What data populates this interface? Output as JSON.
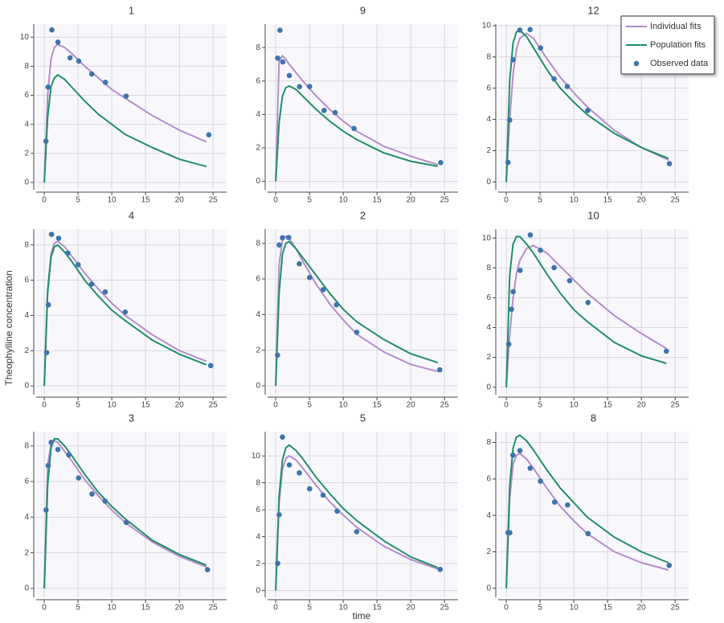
{
  "xlabel": "time",
  "ylabel": "Theophylline concentration",
  "legend": "top-right",
  "chart_data": [
    {
      "type": "line",
      "title": "1",
      "xlim": [
        -1.2,
        27
      ],
      "xticks": [
        0,
        5,
        10,
        15,
        20,
        25
      ],
      "ylim": [
        -0.5,
        10.9
      ],
      "yticks": [
        0,
        2,
        4,
        6,
        8,
        10
      ],
      "grid": true,
      "series": [
        {
          "name": "Individual fits",
          "color": "#b48ccb",
          "x": [
            0,
            0.5,
            1,
            1.5,
            2,
            3,
            4,
            6,
            8,
            10,
            12,
            16,
            20,
            24
          ],
          "values": [
            0,
            6.0,
            8.5,
            9.3,
            9.5,
            9.3,
            8.9,
            8.0,
            7.2,
            6.4,
            5.8,
            4.6,
            3.6,
            2.8
          ]
        },
        {
          "name": "Population fits",
          "color": "#1f8f68",
          "x": [
            0,
            0.5,
            1,
            1.5,
            2,
            3,
            4,
            6,
            8,
            10,
            12,
            16,
            20,
            24
          ],
          "values": [
            0,
            4.5,
            6.6,
            7.2,
            7.4,
            7.1,
            6.6,
            5.6,
            4.7,
            4.0,
            3.3,
            2.4,
            1.6,
            1.1
          ]
        },
        {
          "name": "Observed data",
          "type": "scatter",
          "color": "#3d74ab",
          "x": [
            0.25,
            0.57,
            1.12,
            2.02,
            3.82,
            5.1,
            7.03,
            9.05,
            12.12,
            24.37
          ],
          "values": [
            2.84,
            6.57,
            10.5,
            9.66,
            8.58,
            8.36,
            7.47,
            6.89,
            5.94,
            3.28
          ]
        }
      ]
    },
    {
      "type": "line",
      "title": "9",
      "xlim": [
        -1.2,
        27
      ],
      "xticks": [
        0,
        5,
        10,
        15,
        20,
        25
      ],
      "ylim": [
        -0.5,
        9.4
      ],
      "yticks": [
        0,
        2,
        4,
        6,
        8
      ],
      "grid": true,
      "series": [
        {
          "color": "#b48ccb",
          "x": [
            0,
            0.5,
            1,
            1.5,
            2,
            3,
            4,
            6,
            8,
            10,
            12,
            16,
            20,
            24
          ],
          "values": [
            0,
            7.2,
            7.5,
            7.3,
            7.0,
            6.5,
            6.0,
            5.1,
            4.3,
            3.6,
            3.0,
            2.1,
            1.5,
            1.0
          ]
        },
        {
          "color": "#1f8f68",
          "x": [
            0,
            0.5,
            1,
            1.5,
            2,
            3,
            4,
            6,
            8,
            10,
            12,
            16,
            20,
            24
          ],
          "values": [
            0,
            3.5,
            5.1,
            5.6,
            5.7,
            5.5,
            5.1,
            4.3,
            3.6,
            3.0,
            2.5,
            1.7,
            1.2,
            0.9
          ]
        },
        {
          "type": "scatter",
          "color": "#3d74ab",
          "x": [
            0.3,
            0.63,
            1.05,
            2.02,
            3.53,
            5.02,
            7.17,
            8.8,
            11.6,
            24.43
          ],
          "values": [
            7.37,
            9.03,
            7.14,
            6.33,
            5.66,
            5.67,
            4.24,
            4.11,
            3.16,
            1.12
          ]
        }
      ]
    },
    {
      "type": "line",
      "title": "12",
      "xlim": [
        -1.2,
        27
      ],
      "xticks": [
        0,
        5,
        10,
        15,
        20,
        25
      ],
      "ylim": [
        -0.5,
        10.1
      ],
      "yticks": [
        0,
        2,
        4,
        6,
        8,
        10
      ],
      "grid": true,
      "series": [
        {
          "color": "#b48ccb",
          "x": [
            0,
            0.5,
            1,
            1.5,
            2,
            3,
            4,
            6,
            8,
            10,
            12,
            16,
            20,
            24
          ],
          "values": [
            0,
            4.0,
            6.9,
            8.5,
            9.2,
            9.5,
            9.2,
            7.9,
            6.7,
            5.7,
            4.8,
            3.3,
            2.2,
            1.4
          ]
        },
        {
          "color": "#1f8f68",
          "x": [
            0,
            0.5,
            1,
            1.5,
            2,
            3,
            4,
            6,
            8,
            10,
            12,
            16,
            20,
            24
          ],
          "values": [
            0,
            6.5,
            8.9,
            9.6,
            9.7,
            9.3,
            8.6,
            7.2,
            6.0,
            5.1,
            4.3,
            3.1,
            2.2,
            1.5
          ]
        },
        {
          "type": "scatter",
          "color": "#3d74ab",
          "x": [
            0.25,
            0.5,
            1,
            2,
            3.52,
            5.07,
            7.07,
            9.03,
            12.05,
            24.15
          ],
          "values": [
            1.25,
            3.96,
            7.82,
            9.72,
            9.75,
            8.57,
            6.59,
            6.11,
            4.57,
            1.17
          ]
        }
      ]
    },
    {
      "type": "line",
      "title": "4",
      "xlim": [
        -1.2,
        27
      ],
      "xticks": [
        0,
        5,
        10,
        15,
        20,
        25
      ],
      "ylim": [
        -0.5,
        8.9
      ],
      "yticks": [
        0,
        2,
        4,
        6,
        8
      ],
      "grid": true,
      "series": [
        {
          "color": "#b48ccb",
          "x": [
            0,
            0.5,
            1,
            1.5,
            2,
            3,
            4,
            6,
            8,
            10,
            12,
            16,
            20,
            24
          ],
          "values": [
            0,
            5.5,
            7.5,
            8.1,
            8.2,
            7.9,
            7.4,
            6.4,
            5.5,
            4.7,
            4.0,
            2.9,
            2.0,
            1.4
          ]
        },
        {
          "color": "#1f8f68",
          "x": [
            0,
            0.5,
            1,
            1.5,
            2,
            3,
            4,
            6,
            8,
            10,
            12,
            16,
            20,
            24
          ],
          "values": [
            0,
            5.3,
            7.3,
            7.9,
            8.0,
            7.6,
            7.1,
            6.0,
            5.1,
            4.3,
            3.7,
            2.6,
            1.8,
            1.2
          ]
        },
        {
          "type": "scatter",
          "color": "#3d74ab",
          "x": [
            0.35,
            0.6,
            1.07,
            2.13,
            3.5,
            5.02,
            7.02,
            9.02,
            11.98,
            24.65
          ],
          "values": [
            1.89,
            4.6,
            8.6,
            8.38,
            7.54,
            6.88,
            5.78,
            5.33,
            4.19,
            1.15
          ]
        }
      ]
    },
    {
      "type": "line",
      "title": "2",
      "xlim": [
        -1.2,
        27
      ],
      "xticks": [
        0,
        5,
        10,
        15,
        20,
        25
      ],
      "ylim": [
        -0.5,
        8.8
      ],
      "yticks": [
        0,
        2,
        4,
        6,
        8
      ],
      "grid": true,
      "series": [
        {
          "color": "#b48ccb",
          "x": [
            0,
            0.5,
            1,
            1.5,
            2,
            3,
            4,
            6,
            8,
            10,
            12,
            16,
            20,
            24
          ],
          "values": [
            0,
            6.8,
            8.2,
            8.4,
            8.3,
            7.7,
            7.0,
            5.7,
            4.6,
            3.7,
            2.9,
            1.9,
            1.2,
            0.8
          ]
        },
        {
          "color": "#1f8f68",
          "x": [
            0,
            0.5,
            1,
            1.5,
            2,
            3,
            4,
            6,
            8,
            10,
            12,
            16,
            20,
            24
          ],
          "values": [
            0,
            5.2,
            7.4,
            8.0,
            8.1,
            7.7,
            7.2,
            6.2,
            5.2,
            4.3,
            3.6,
            2.6,
            1.8,
            1.3
          ]
        },
        {
          "type": "scatter",
          "color": "#3d74ab",
          "x": [
            0.27,
            0.52,
            1,
            1.92,
            3.5,
            5.02,
            7.03,
            9,
            12,
            24.3
          ],
          "values": [
            1.72,
            7.91,
            8.31,
            8.33,
            6.85,
            6.08,
            5.4,
            4.55,
            3.01,
            0.9
          ]
        }
      ]
    },
    {
      "type": "line",
      "title": "10",
      "xlim": [
        -1.2,
        27
      ],
      "xticks": [
        0,
        5,
        10,
        15,
        20,
        25
      ],
      "ylim": [
        -0.5,
        10.6
      ],
      "yticks": [
        0,
        2,
        4,
        6,
        8,
        10
      ],
      "grid": true,
      "series": [
        {
          "color": "#b48ccb",
          "x": [
            0,
            0.5,
            1,
            1.5,
            2,
            3,
            4,
            6,
            8,
            10,
            12,
            16,
            20,
            23.7
          ],
          "values": [
            0,
            3.5,
            6.0,
            7.6,
            8.5,
            9.3,
            9.5,
            9.0,
            8.1,
            7.2,
            6.3,
            4.8,
            3.6,
            2.6
          ]
        },
        {
          "color": "#1f8f68",
          "x": [
            0,
            0.5,
            1,
            1.5,
            2,
            3,
            4,
            6,
            8,
            10,
            12,
            16,
            20,
            23.7
          ],
          "values": [
            0,
            7.5,
            9.6,
            10.1,
            10.1,
            9.6,
            9.0,
            7.6,
            6.3,
            5.2,
            4.4,
            3.0,
            2.1,
            1.6
          ]
        },
        {
          "type": "scatter",
          "color": "#3d74ab",
          "x": [
            0.37,
            0.77,
            1.02,
            2.05,
            3.55,
            5.05,
            7.08,
            9.38,
            12.1,
            23.7
          ],
          "values": [
            2.89,
            5.22,
            6.41,
            7.83,
            10.21,
            9.18,
            8.02,
            7.14,
            5.68,
            2.42
          ]
        }
      ]
    },
    {
      "type": "line",
      "title": "3",
      "xlim": [
        -1.2,
        27
      ],
      "xticks": [
        0,
        5,
        10,
        15,
        20,
        25
      ],
      "ylim": [
        -0.5,
        8.8
      ],
      "yticks": [
        0,
        2,
        4,
        6,
        8
      ],
      "grid": true,
      "series": [
        {
          "color": "#b48ccb",
          "x": [
            0,
            0.5,
            1,
            1.5,
            2,
            3,
            4,
            6,
            8,
            10,
            12,
            16,
            20,
            24
          ],
          "values": [
            0,
            6.9,
            8.1,
            8.3,
            8.2,
            7.7,
            7.2,
            6.1,
            5.2,
            4.4,
            3.7,
            2.6,
            1.8,
            1.2
          ]
        },
        {
          "color": "#1f8f68",
          "x": [
            0,
            0.5,
            1,
            1.5,
            2,
            3,
            4,
            6,
            8,
            10,
            12,
            16,
            20,
            24
          ],
          "values": [
            0,
            5.8,
            7.9,
            8.4,
            8.4,
            8.0,
            7.5,
            6.4,
            5.4,
            4.6,
            3.9,
            2.7,
            1.9,
            1.3
          ]
        },
        {
          "type": "scatter",
          "color": "#3d74ab",
          "x": [
            0.27,
            0.58,
            1.02,
            2.02,
            3.62,
            5.08,
            7.07,
            9,
            12.15,
            24.17
          ],
          "values": [
            4.4,
            6.9,
            8.2,
            7.8,
            7.5,
            6.2,
            5.3,
            4.9,
            3.7,
            1.05
          ]
        }
      ]
    },
    {
      "type": "line",
      "title": "5",
      "xlim": [
        -1.2,
        27
      ],
      "xticks": [
        0,
        5,
        10,
        15,
        20,
        25
      ],
      "ylim": [
        -0.5,
        11.8
      ],
      "yticks": [
        0,
        2,
        4,
        6,
        8,
        10
      ],
      "grid": true,
      "series": [
        {
          "color": "#b48ccb",
          "x": [
            0,
            0.5,
            1,
            1.5,
            2,
            3,
            4,
            6,
            8,
            10,
            12,
            16,
            20,
            24
          ],
          "values": [
            0,
            6.5,
            9.0,
            9.8,
            10.0,
            9.7,
            9.1,
            7.8,
            6.6,
            5.6,
            4.7,
            3.3,
            2.3,
            1.6
          ]
        },
        {
          "color": "#1f8f68",
          "x": [
            0,
            0.5,
            1,
            1.5,
            2,
            3,
            4,
            6,
            8,
            10,
            12,
            16,
            20,
            24
          ],
          "values": [
            0,
            7.0,
            9.7,
            10.6,
            10.8,
            10.4,
            9.8,
            8.4,
            7.2,
            6.1,
            5.2,
            3.7,
            2.5,
            1.7
          ]
        },
        {
          "type": "scatter",
          "color": "#3d74ab",
          "x": [
            0.3,
            0.52,
            1,
            2.02,
            3.5,
            5.02,
            7.02,
            9.1,
            12,
            24.35
          ],
          "values": [
            2.02,
            5.63,
            11.4,
            9.33,
            8.74,
            7.56,
            7.09,
            5.9,
            4.37,
            1.57
          ]
        }
      ]
    },
    {
      "type": "line",
      "title": "8",
      "xlim": [
        -1.2,
        27
      ],
      "xticks": [
        0,
        5,
        10,
        15,
        20,
        25
      ],
      "ylim": [
        -0.5,
        8.6
      ],
      "yticks": [
        0,
        2,
        4,
        6,
        8
      ],
      "grid": true,
      "series": [
        {
          "color": "#b48ccb",
          "x": [
            0,
            0.5,
            1,
            1.5,
            2,
            3,
            4,
            6,
            8,
            10,
            12,
            16,
            20,
            24
          ],
          "values": [
            0,
            4.9,
            6.8,
            7.3,
            7.4,
            7.1,
            6.6,
            5.5,
            4.5,
            3.7,
            3.0,
            2.0,
            1.4,
            1.0
          ]
        },
        {
          "color": "#1f8f68",
          "x": [
            0,
            0.5,
            1,
            1.5,
            2,
            3,
            4,
            6,
            8,
            10,
            12,
            16,
            20,
            24
          ],
          "values": [
            0,
            5.6,
            7.7,
            8.3,
            8.4,
            8.1,
            7.6,
            6.5,
            5.5,
            4.7,
            3.9,
            2.8,
            2.0,
            1.4
          ]
        },
        {
          "type": "scatter",
          "color": "#3d74ab",
          "x": [
            0.25,
            0.52,
            0.98,
            2.02,
            3.53,
            5.05,
            7.15,
            9.07,
            12.1,
            24.12
          ],
          "values": [
            3.05,
            3.05,
            7.31,
            7.56,
            6.59,
            5.88,
            4.73,
            4.57,
            3.0,
            1.25
          ]
        }
      ]
    }
  ]
}
